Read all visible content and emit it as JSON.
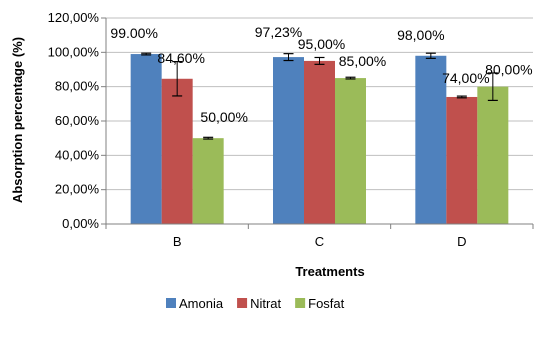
{
  "chart_data": {
    "type": "bar",
    "categories": [
      "B",
      "C",
      "D"
    ],
    "xlabel": "Treatments",
    "ylabel": "Absorption percentage (%)",
    "ylim": [
      0,
      120
    ],
    "yticks": [
      0,
      20,
      40,
      60,
      80,
      100,
      120
    ],
    "ytick_labels": [
      "0,00%",
      "20,00%",
      "40,00%",
      "60,00%",
      "80,00%",
      "100,00%",
      "120,00%"
    ],
    "grid": "horizontal major",
    "legend": "bottom",
    "series": [
      {
        "name": "Amonia",
        "color": "#4F81BD",
        "values": [
          99.0,
          97.23,
          98.0
        ],
        "errors": [
          0.5,
          2.0,
          1.5
        ],
        "labels": [
          "99.00%",
          "97,23%",
          "98,00%"
        ]
      },
      {
        "name": "Nitrat",
        "color": "#C0504D",
        "values": [
          84.6,
          95.0,
          74.0
        ],
        "errors": [
          10.0,
          2.0,
          0.5
        ],
        "labels": [
          "84,60%",
          "95,00%",
          "74,00%"
        ]
      },
      {
        "name": "Fosfat",
        "color": "#9BBB59",
        "values": [
          50.0,
          85.0,
          80.0
        ],
        "errors": [
          0.5,
          0.5,
          8.0
        ],
        "labels": [
          "50,00%",
          "85,00%",
          "80,00%"
        ]
      }
    ]
  }
}
